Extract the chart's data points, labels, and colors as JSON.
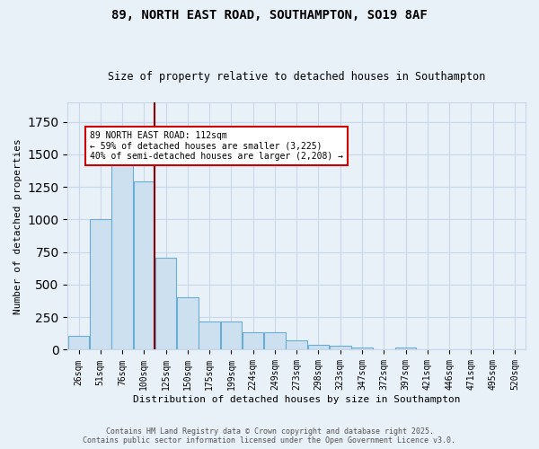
{
  "title1": "89, NORTH EAST ROAD, SOUTHAMPTON, SO19 8AF",
  "title2": "Size of property relative to detached houses in Southampton",
  "xlabel": "Distribution of detached houses by size in Southampton",
  "ylabel": "Number of detached properties",
  "categories": [
    "26sqm",
    "51sqm",
    "76sqm",
    "100sqm",
    "125sqm",
    "150sqm",
    "175sqm",
    "199sqm",
    "224sqm",
    "249sqm",
    "273sqm",
    "298sqm",
    "323sqm",
    "347sqm",
    "372sqm",
    "397sqm",
    "421sqm",
    "446sqm",
    "471sqm",
    "495sqm",
    "520sqm"
  ],
  "values": [
    110,
    1000,
    1500,
    1290,
    710,
    405,
    215,
    215,
    135,
    135,
    75,
    40,
    30,
    20,
    5,
    20,
    0,
    0,
    0,
    0,
    0
  ],
  "bar_color": "#cce0f0",
  "bar_edge_color": "#6aaed6",
  "grid_color": "#c8d8e8",
  "bg_color": "#e8f0f8",
  "vline_x": 3.5,
  "vline_color": "#8b0000",
  "annotation_text": "89 NORTH EAST ROAD: 112sqm\n← 59% of detached houses are smaller (3,225)\n40% of semi-detached houses are larger (2,208) →",
  "annotation_box_color": "#ffffff",
  "annotation_box_edge": "#cc0000",
  "footer1": "Contains HM Land Registry data © Crown copyright and database right 2025.",
  "footer2": "Contains public sector information licensed under the Open Government Licence v3.0.",
  "ylim": [
    0,
    1900
  ],
  "figwidth": 6.0,
  "figheight": 5.0,
  "dpi": 100
}
